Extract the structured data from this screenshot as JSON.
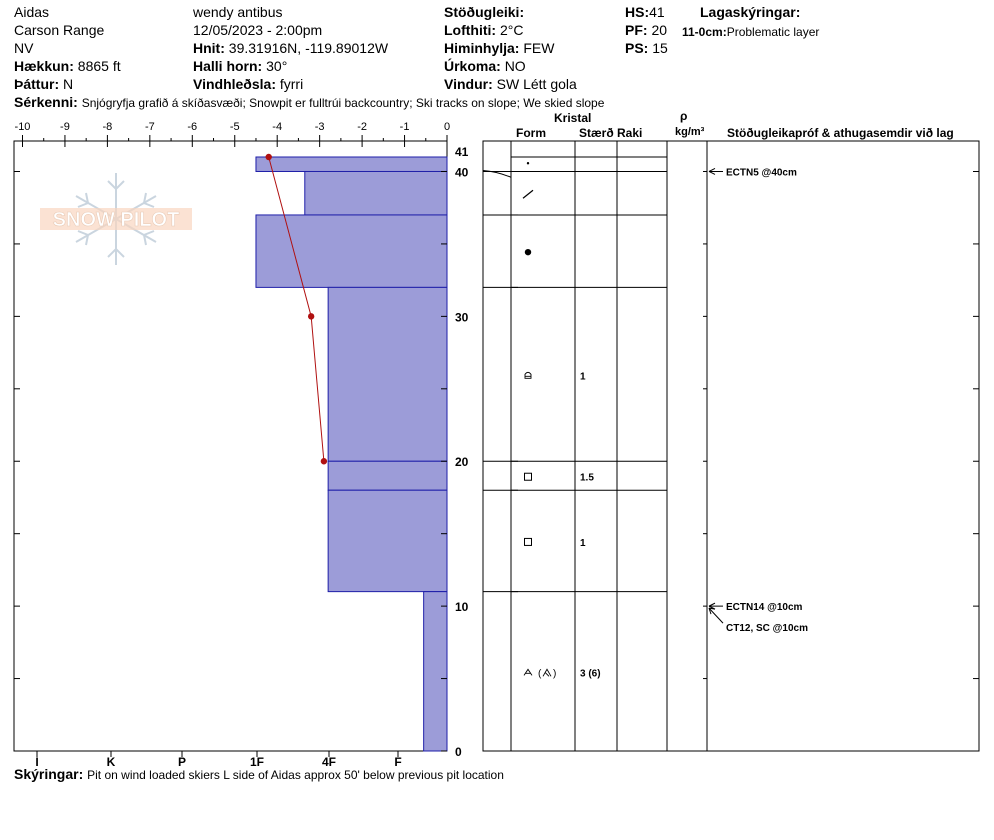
{
  "header": {
    "col1": [
      "Aidas",
      "Carson Range",
      "NV"
    ],
    "elevation_label": "Hækkun:",
    "elevation": "8865 ft",
    "aspect_label": "Þáttur:",
    "aspect": "N",
    "observer": "wendy antibus",
    "datetime": "12/05/2023 - 2:00pm",
    "coords_label": "Hnit:",
    "coords": "39.31916N, -119.89012W",
    "slope_label": "Halli horn:",
    "slope": "30°",
    "wind_loading_label": "Vindhleðsla:",
    "wind_loading": "fyrri",
    "stability_label": "Stöðugleiki:",
    "stability": "",
    "air_temp_label": "Lofthiti:",
    "air_temp": "2°C",
    "sky_label": "Himinhylja:",
    "sky": "FEW",
    "precip_label": "Úrkoma:",
    "precip": "NO",
    "wind_label": "Vindur:",
    "wind": "SW Létt gola",
    "hs_label": "HS:",
    "hs": "41",
    "pf_label": "PF:",
    "pf": "20",
    "ps_label": "PS:",
    "ps": "15",
    "layer_notes_label": "Lagaskýringar:",
    "layer_note_depth": "11-0cm:",
    "layer_note_text": "Problematic layer",
    "features_label": "Sérkenni:",
    "features": "Snjógryfja grafið á skíðasvæði; Snowpit er fulltrúi backcountry; Ski tracks on slope; We skied slope",
    "footer_label": "Skýringar:",
    "footer": "Pit on wind loaded skiers L side of Aidas approx 50' below previous pit location"
  },
  "logo_text": "SNOW PILOT",
  "table_headers": {
    "crystal": "Kristal",
    "form": "Form",
    "size": "Stærð",
    "moisture": "Raki",
    "rho": "ρ",
    "density_unit": "kg/m³",
    "tests": "Stöðugleikapróf & athugasemdir við lag"
  },
  "chart_data": {
    "type": "snow-profile",
    "temperature_axis": {
      "ticks": [
        -10,
        -9,
        -8,
        -7,
        -6,
        -5,
        -4,
        -3,
        -2,
        -1,
        0
      ],
      "range": [
        -10,
        0
      ]
    },
    "hardness_axis": {
      "ticks": [
        "I",
        "K",
        "P",
        "1F",
        "4F",
        "F"
      ]
    },
    "height_axis": {
      "range": [
        0,
        41
      ],
      "ticks": [
        0,
        10,
        20,
        30,
        40,
        41
      ]
    },
    "hardness_layers": [
      {
        "top": 41,
        "bottom": 40,
        "hardness_temp_equiv": -4.5
      },
      {
        "top": 40,
        "bottom": 37,
        "hardness_temp_equiv": -3.35
      },
      {
        "top": 37,
        "bottom": 32,
        "hardness_temp_equiv": -4.5
      },
      {
        "top": 32,
        "bottom": 20,
        "hardness_temp_equiv": -2.8
      },
      {
        "top": 20,
        "bottom": 18,
        "hardness_temp_equiv": -2.8
      },
      {
        "top": 18,
        "bottom": 11,
        "hardness_temp_equiv": -2.8
      },
      {
        "top": 11,
        "bottom": 0,
        "hardness_temp_equiv": -0.55
      }
    ],
    "temperature_profile": [
      {
        "height": 41,
        "temp": -4.2
      },
      {
        "height": 30,
        "temp": -3.2
      },
      {
        "height": 20,
        "temp": -2.9
      }
    ],
    "crystal_rows": [
      {
        "top": 41,
        "bottom": 40,
        "form_icon": "dot-small",
        "size": ""
      },
      {
        "top": 40,
        "bottom": 37,
        "form_icon": "slash",
        "size": ""
      },
      {
        "top": 37,
        "bottom": 32,
        "form_icon": "dot-filled",
        "size": ""
      },
      {
        "top": 32,
        "bottom": 20,
        "form_icon": "rounded",
        "size": "1"
      },
      {
        "top": 20,
        "bottom": 18,
        "form_icon": "square",
        "size": "1.5"
      },
      {
        "top": 18,
        "bottom": 11,
        "form_icon": "square",
        "size": "1"
      },
      {
        "top": 11,
        "bottom": 0,
        "form_icon": "depth-hoar",
        "size": "3 (6)"
      }
    ],
    "stability_tests": [
      {
        "height": 40,
        "label": "ECTN5 @40cm"
      },
      {
        "height": 10,
        "label": "ECTN14 @10cm"
      },
      {
        "height": 10,
        "label": "CT12, SC @10cm"
      }
    ],
    "colors": {
      "layer_fill": "#9c9cd8",
      "layer_stroke": "#1e1ea8",
      "temp_line": "#b01010"
    }
  }
}
